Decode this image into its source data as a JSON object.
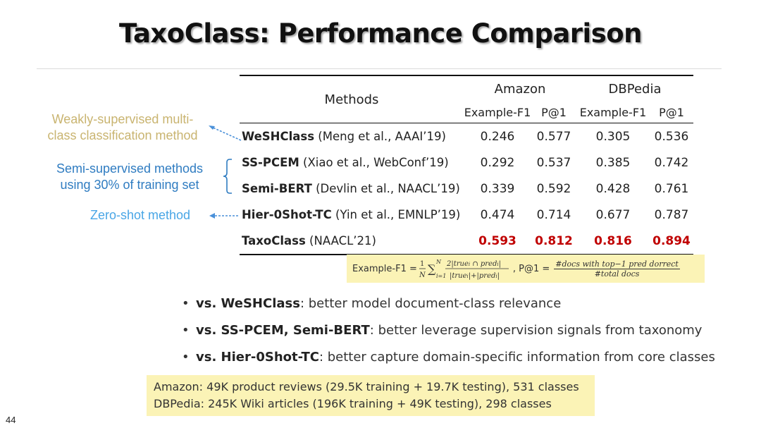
{
  "slide": {
    "title": "TaxoClass: Performance Comparison",
    "page_number": "44"
  },
  "table": {
    "methods_header": "Methods",
    "groups": [
      "Amazon",
      "DBPedia"
    ],
    "metrics": [
      "Example-F1",
      "P@1",
      "Example-F1",
      "P@1"
    ],
    "rows": [
      {
        "name": "WeSHClass",
        "cite": " (Meng et al., AAAI’19)",
        "values": [
          "0.246",
          "0.577",
          "0.305",
          "0.536"
        ]
      },
      {
        "name": "SS-PCEM",
        "cite": " (Xiao et al., WebConf’19)",
        "values": [
          "0.292",
          "0.537",
          "0.385",
          "0.742"
        ]
      },
      {
        "name": "Semi-BERT",
        "cite": " (Devlin et al., NAACL’19)",
        "values": [
          "0.339",
          "0.592",
          "0.428",
          "0.761"
        ]
      },
      {
        "name": "Hier-0Shot-TC",
        "cite": " (Yin et al., EMNLP’19)",
        "values": [
          "0.474",
          "0.714",
          "0.677",
          "0.787"
        ]
      },
      {
        "name": "TaxoClass",
        "cite": " (NAACL’21)",
        "values": [
          "0.593",
          "0.812",
          "0.816",
          "0.894"
        ]
      }
    ],
    "best_color": "#c00000"
  },
  "annotations": {
    "weak_line1": "Weakly-supervised multi-",
    "weak_line2": "class classification method",
    "semi_line1": "Semi-supervised methods",
    "semi_line2": "using 30% of training set",
    "zero": "Zero-shot method"
  },
  "formula": {
    "ef1_label": "Example-F1 =",
    "p1_label": ", P@1 =",
    "p1_numerator": "#docs with top−1 pred dorrect",
    "p1_denominator": "#total docs"
  },
  "bullets": [
    {
      "bold": "vs. WeSHClass",
      "rest": ": better model document-class relevance"
    },
    {
      "bold": "vs. SS-PCEM, Semi-BERT",
      "rest": ": better leverage supervision signals from taxonomy"
    },
    {
      "bold": "vs. Hier-0Shot-TC",
      "rest": ": better capture domain-specific information from core classes"
    }
  ],
  "datasets": [
    {
      "name": "Amazon",
      "desc": ": 49K product reviews (29.5K training + 19.7K testing), 531 classes"
    },
    {
      "name": "DBPedia",
      "desc": ": 245K Wiki articles (196K training + 49K testing), 298 classes"
    }
  ],
  "colors": {
    "highlight": "#fbf3b6",
    "weak": "#c9b470",
    "semi": "#2f7cc1",
    "zero": "#49a6e6"
  }
}
